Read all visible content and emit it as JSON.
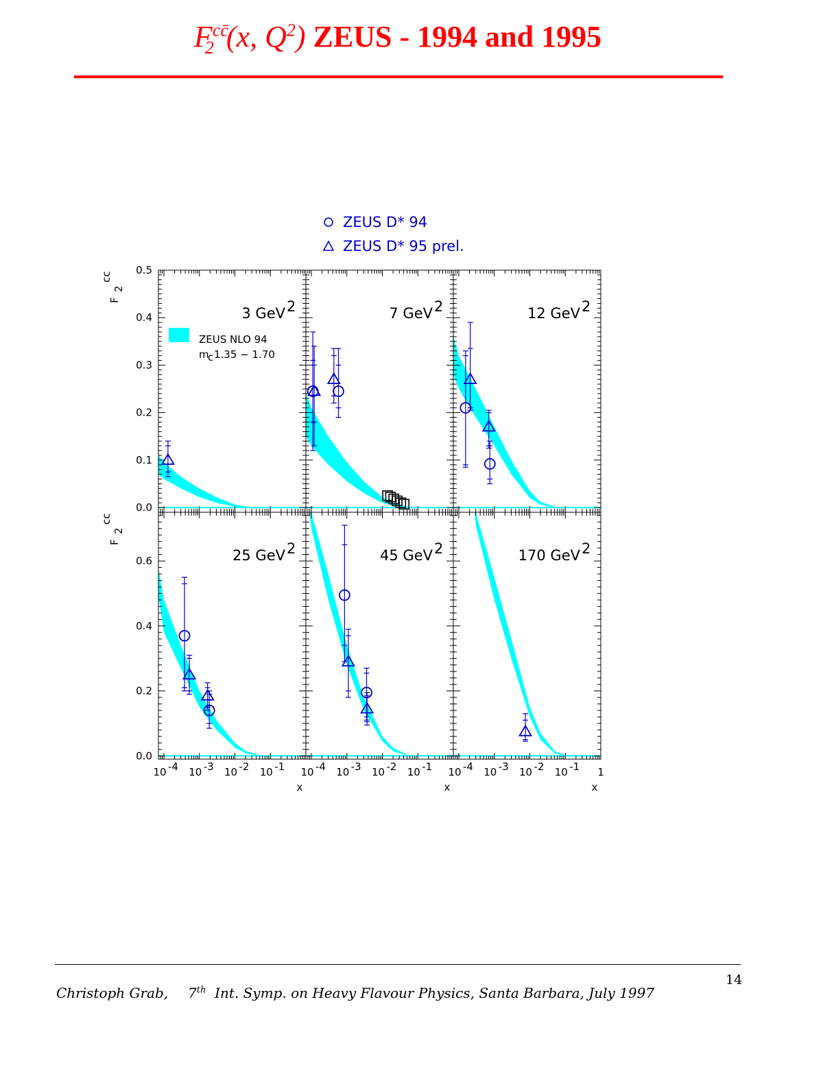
{
  "header": {
    "title_math_base": "F",
    "title_math_sub": "2",
    "title_math_sup": "cc̄",
    "title_math_args": "(x, Q",
    "title_math_args_sup": "2",
    "title_math_close": ")",
    "title_text": "ZEUS - 1994 and 1995"
  },
  "footer": {
    "author": "Christoph Grab,",
    "event_ordinal": "7",
    "event_ordinal_sup": "th",
    "event_rest": "Int. Symp. on Heavy Flavour Physics, Santa Barbara, July 1997",
    "page_number": "14"
  },
  "colors": {
    "title": "#ff0000",
    "data": "#0000cc",
    "band": "#00ffff",
    "black": "#000000"
  },
  "chart_data": {
    "type": "scatter",
    "legend": [
      {
        "marker": "circle",
        "label": "ZEUS D* 94"
      },
      {
        "marker": "triangle",
        "label": "ZEUS D* 95 prel."
      }
    ],
    "band_legend": {
      "line1": "ZEUS NLO 94",
      "line2_m": "m",
      "line2_sub": "c",
      "line2_rest": "1.35 − 1.70"
    },
    "ylabel": {
      "main": "F",
      "sub": "2",
      "sup": "cc"
    },
    "xlabel": "x",
    "x_scale": "log",
    "xlim": [
      7e-05,
      1
    ],
    "x_tick_labels": [
      {
        "base": "10",
        "exp": "-4"
      },
      {
        "base": "10",
        "exp": "-3"
      },
      {
        "base": "10",
        "exp": "-2"
      },
      {
        "base": "10",
        "exp": "-1"
      }
    ],
    "x_last_tick_label": "1",
    "rows": [
      {
        "ylim": [
          -0.01,
          0.5
        ],
        "yticks": [
          0.0,
          0.1,
          0.2,
          0.3,
          0.4,
          0.5
        ],
        "ytick_labels": [
          "0.0",
          "0.1",
          "0.2",
          "0.3",
          "0.4",
          "0.5"
        ]
      },
      {
        "ylim": [
          -0.01,
          0.75
        ],
        "yticks": [
          0.0,
          0.2,
          0.4,
          0.6
        ],
        "ytick_labels": [
          "0.0",
          "0.2",
          "0.4",
          "0.6"
        ]
      }
    ],
    "panels": [
      {
        "q2": "3",
        "q2_unit": "GeV",
        "band": {
          "x": [
            7e-05,
            0.0001,
            0.0003,
            0.001,
            0.003,
            0.01,
            0.02,
            0.05,
            0.1,
            1
          ],
          "lower": [
            0.07,
            0.06,
            0.04,
            0.022,
            0.01,
            0.002,
            0.0,
            0.0,
            0.0,
            0.0
          ],
          "upper": [
            0.11,
            0.095,
            0.065,
            0.04,
            0.022,
            0.006,
            0.002,
            0.0,
            0.0,
            0.0
          ]
        },
        "points": [
          {
            "marker": "triangle",
            "style": "open",
            "x": 0.00013,
            "y": 0.1,
            "err_outer": [
              0.065,
              0.14
            ],
            "err_inner": [
              0.075,
              0.13
            ]
          }
        ]
      },
      {
        "q2": "7",
        "q2_unit": "GeV",
        "band": {
          "x": [
            7e-05,
            0.0001,
            0.0003,
            0.001,
            0.003,
            0.01,
            0.02,
            0.05,
            0.1,
            1
          ],
          "lower": [
            0.15,
            0.13,
            0.09,
            0.055,
            0.03,
            0.01,
            0.004,
            0.0,
            0.0,
            0.0
          ],
          "upper": [
            0.24,
            0.21,
            0.15,
            0.095,
            0.055,
            0.022,
            0.01,
            0.002,
            0.0,
            0.0
          ]
        },
        "points": [
          {
            "marker": "circle",
            "style": "open",
            "x": 0.00011,
            "y": 0.245,
            "err_outer": [
              0.12,
              0.37
            ],
            "err_inner": [
              0.18,
              0.31
            ]
          },
          {
            "marker": "triangle",
            "style": "open",
            "x": 0.00012,
            "y": 0.245,
            "err_outer": [
              0.13,
              0.34
            ],
            "err_inner": [
              0.18,
              0.3
            ]
          },
          {
            "marker": "triangle",
            "style": "open",
            "x": 0.00043,
            "y": 0.27,
            "err_outer": [
              0.22,
              0.335
            ],
            "err_inner": [
              0.235,
              0.32
            ]
          },
          {
            "marker": "circle",
            "style": "open",
            "x": 0.00058,
            "y": 0.245,
            "err_outer": [
              0.19,
              0.335
            ],
            "err_inner": [
              0.21,
              0.3
            ]
          },
          {
            "marker": "square",
            "style": "open-black",
            "x": 0.014,
            "y": 0.025
          },
          {
            "marker": "square",
            "style": "open-black",
            "x": 0.017,
            "y": 0.022
          },
          {
            "marker": "square",
            "style": "open-black",
            "x": 0.021,
            "y": 0.018
          },
          {
            "marker": "square",
            "style": "open-black",
            "x": 0.026,
            "y": 0.014
          },
          {
            "marker": "square",
            "style": "open-black",
            "x": 0.033,
            "y": 0.01
          },
          {
            "marker": "square",
            "style": "open-black",
            "x": 0.041,
            "y": 0.007
          }
        ]
      },
      {
        "q2": "12",
        "q2_unit": "GeV",
        "band": {
          "x": [
            7e-05,
            0.0001,
            0.0003,
            0.001,
            0.003,
            0.01,
            0.02,
            0.05,
            0.1,
            1
          ],
          "lower": [
            0.28,
            0.25,
            0.19,
            0.13,
            0.07,
            0.02,
            0.006,
            0.0,
            0.0,
            0.0
          ],
          "upper": [
            0.36,
            0.32,
            0.25,
            0.17,
            0.1,
            0.035,
            0.012,
            0.002,
            0.0,
            0.0
          ]
        },
        "points": [
          {
            "marker": "circle",
            "style": "open",
            "x": 0.000155,
            "y": 0.21,
            "err_outer": [
              0.085,
              0.33
            ],
            "err_inner": [
              0.09,
              0.32
            ]
          },
          {
            "marker": "triangle",
            "style": "open",
            "x": 0.00021,
            "y": 0.27,
            "err_outer": [
              0.205,
              0.39
            ],
            "err_inner": [
              0.21,
              0.335
            ]
          },
          {
            "marker": "triangle",
            "style": "open",
            "x": 0.0007,
            "y": 0.17,
            "err_outer": [
              0.125,
              0.205
            ],
            "err_inner": [
              0.13,
              0.2
            ]
          },
          {
            "marker": "circle",
            "style": "open",
            "x": 0.00075,
            "y": 0.092,
            "err_outer": [
              0.05,
              0.14
            ],
            "err_inner": [
              0.06,
              0.13
            ]
          }
        ]
      },
      {
        "q2": "25",
        "q2_unit": "GeV",
        "band": {
          "x": [
            7e-05,
            0.0001,
            0.0003,
            0.001,
            0.003,
            0.01,
            0.02,
            0.05,
            0.1,
            1
          ],
          "lower": [
            0.49,
            0.38,
            0.27,
            0.15,
            0.08,
            0.025,
            0.008,
            0.0,
            0.0,
            0.0
          ],
          "upper": [
            0.58,
            0.48,
            0.34,
            0.2,
            0.11,
            0.04,
            0.015,
            0.002,
            0.0,
            0.0
          ]
        },
        "points": [
          {
            "marker": "circle",
            "style": "open",
            "x": 0.00038,
            "y": 0.37,
            "err_outer": [
              0.2,
              0.55
            ],
            "err_inner": [
              0.21,
              0.53
            ]
          },
          {
            "marker": "triangle",
            "style": "open",
            "x": 0.00052,
            "y": 0.25,
            "err_outer": [
              0.19,
              0.31
            ],
            "err_inner": [
              0.2,
              0.3
            ]
          },
          {
            "marker": "triangle",
            "style": "open",
            "x": 0.0017,
            "y": 0.185,
            "err_outer": [
              0.14,
              0.225
            ],
            "err_inner": [
              0.15,
              0.21
            ]
          },
          {
            "marker": "circle",
            "style": "open",
            "x": 0.0019,
            "y": 0.14,
            "err_outer": [
              0.085,
              0.2
            ],
            "err_inner": [
              0.1,
              0.19
            ]
          }
        ]
      },
      {
        "q2": "45",
        "q2_unit": "GeV",
        "band": {
          "x": [
            9e-05,
            0.0001,
            0.0003,
            0.001,
            0.003,
            0.01,
            0.02,
            0.05,
            0.1,
            1
          ],
          "lower": [
            0.75,
            0.7,
            0.48,
            0.28,
            0.14,
            0.045,
            0.015,
            0.0,
            0.0,
            0.0
          ],
          "upper": [
            0.75,
            0.75,
            0.56,
            0.34,
            0.18,
            0.06,
            0.025,
            0.003,
            0.0,
            0.0
          ]
        },
        "points": [
          {
            "marker": "circle",
            "style": "open",
            "x": 0.00086,
            "y": 0.495,
            "err_outer": [
              0.29,
              0.71
            ],
            "err_inner": [
              0.34,
              0.65
            ]
          },
          {
            "marker": "triangle",
            "style": "open",
            "x": 0.0011,
            "y": 0.29,
            "err_outer": [
              0.18,
              0.39
            ],
            "err_inner": [
              0.2,
              0.37
            ]
          },
          {
            "marker": "circle",
            "style": "open",
            "x": 0.0036,
            "y": 0.195,
            "err_outer": [
              0.11,
              0.27
            ],
            "err_inner": [
              0.12,
              0.255
            ]
          },
          {
            "marker": "triangle",
            "style": "open",
            "x": 0.0037,
            "y": 0.145,
            "err_outer": [
              0.095,
              0.195
            ],
            "err_inner": [
              0.105,
              0.185
            ]
          }
        ]
      },
      {
        "q2": "170",
        "q2_unit": "GeV",
        "band": {
          "x": [
            0.00028,
            0.0003,
            0.001,
            0.003,
            0.01,
            0.02,
            0.05,
            0.1,
            1
          ],
          "lower": [
            0.75,
            0.71,
            0.48,
            0.3,
            0.12,
            0.05,
            0.008,
            0.0,
            0.0
          ],
          "upper": [
            0.75,
            0.75,
            0.55,
            0.36,
            0.15,
            0.07,
            0.015,
            0.002,
            0.0
          ]
        },
        "points": [
          {
            "marker": "triangle",
            "style": "open",
            "x": 0.0075,
            "y": 0.075,
            "err_outer": [
              0.045,
              0.13
            ],
            "err_inner": [
              0.05,
              0.11
            ]
          }
        ]
      }
    ]
  }
}
